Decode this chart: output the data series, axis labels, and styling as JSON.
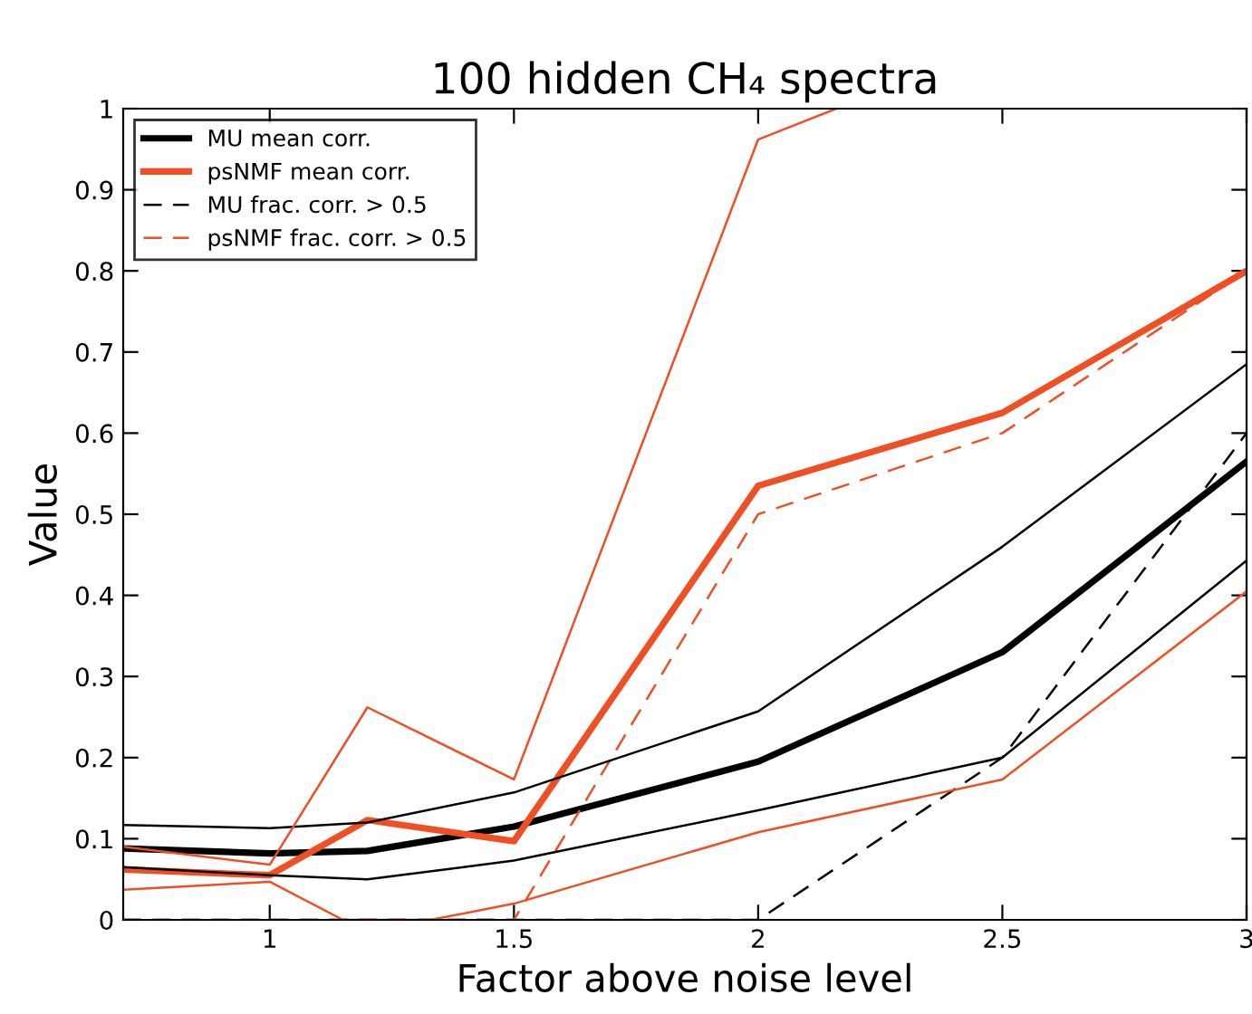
{
  "chart_data": {
    "type": "line",
    "title": "100 hidden CH₄ spectra",
    "xlabel": "Factor above noise level",
    "ylabel": "Value",
    "xlim": [
      0.7,
      3
    ],
    "xticks": [
      1,
      1.5,
      2,
      2.5,
      3
    ],
    "ylim": [
      0,
      1
    ],
    "yticks": [
      0,
      0.1,
      0.2,
      0.3,
      0.4,
      0.5,
      0.6,
      0.7,
      0.8,
      0.9,
      1
    ],
    "x": [
      0.7,
      1,
      1.2,
      1.5,
      2,
      2.5,
      3
    ],
    "series": [
      {
        "name": "MU mean corr.",
        "color": "#000000",
        "line_style": "solid",
        "values": [
          0.088,
          0.082,
          0.085,
          0.115,
          0.195,
          0.33,
          0.565
        ]
      },
      {
        "name": "psNMF mean corr.",
        "color": "#f04e23",
        "line_style": "solid",
        "values": [
          0.062,
          0.055,
          0.123,
          0.097,
          0.535,
          0.625,
          0.8
        ]
      },
      {
        "name": "MU frac. corr. > 0.5",
        "color": "#000000",
        "line_style": "dashed",
        "values": [
          0,
          0,
          0,
          0,
          0,
          0.2,
          0.6
        ]
      },
      {
        "name": "psNMF frac. corr. > 0.5",
        "color": "#f04e23",
        "line_style": "dashed",
        "values": [
          0,
          0,
          0,
          0,
          0.5,
          0.6,
          0.8
        ]
      },
      {
        "color": "#000000",
        "line_style": "solid",
        "values": [
          0.117,
          0.113,
          0.12,
          0.157,
          0.257,
          0.46,
          0.685
        ]
      },
      {
        "color": "#000000",
        "line_style": "solid",
        "values": [
          0.065,
          0.055,
          0.05,
          0.073,
          0.135,
          0.2,
          0.443
        ]
      },
      {
        "color": "#f04e23",
        "line_style": "solid",
        "x": [
          0.7,
          1,
          1.2,
          1.5,
          2,
          2.16
        ],
        "values": [
          0.09,
          0.068,
          0.262,
          0.173,
          0.962,
          1
        ]
      },
      {
        "color": "#f04e23",
        "line_style": "solid",
        "x": [
          0.7,
          1,
          1.15,
          1.33,
          1.5,
          2,
          2.5,
          3
        ],
        "values": [
          0.037,
          0.047,
          0,
          0,
          0.02,
          0.108,
          0.173,
          0.405
        ]
      }
    ],
    "legend": "top left",
    "grid": false,
    "marker": "none"
  }
}
